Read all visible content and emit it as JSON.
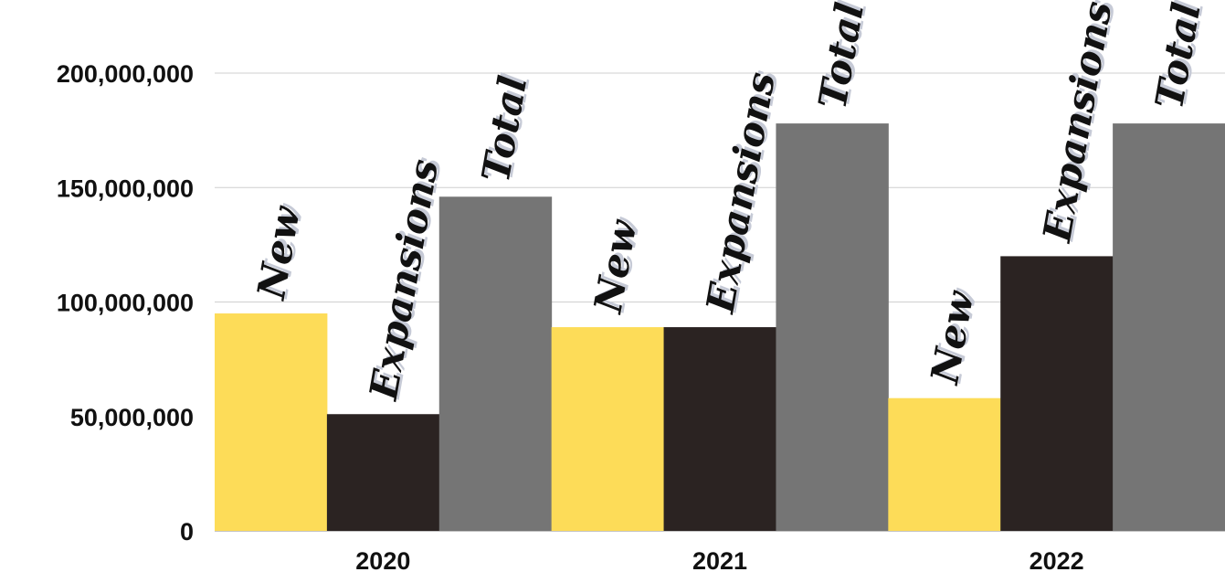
{
  "chart_data": {
    "type": "bar",
    "title": "",
    "xlabel": "",
    "ylabel": "",
    "categories": [
      "2020",
      "2021",
      "2022"
    ],
    "series": [
      {
        "name": "New",
        "color": "#FDDC58",
        "values": [
          95000000,
          89000000,
          58000000
        ]
      },
      {
        "name": "Expansions",
        "color": "#2B2322",
        "values": [
          51000000,
          89000000,
          120000000
        ]
      },
      {
        "name": "Total",
        "color": "#757575",
        "values": [
          146000000,
          178000000,
          178000000
        ]
      }
    ],
    "ylim": [
      0,
      200000000
    ],
    "yticks": [
      0,
      50000000,
      100000000,
      150000000,
      200000000
    ],
    "ytick_labels": [
      "0",
      "50,000,000",
      "100,000,000",
      "150,000,000",
      "200,000,000"
    ],
    "grid": true,
    "legend": "none",
    "data_labels": "series name above each bar, rotated"
  }
}
